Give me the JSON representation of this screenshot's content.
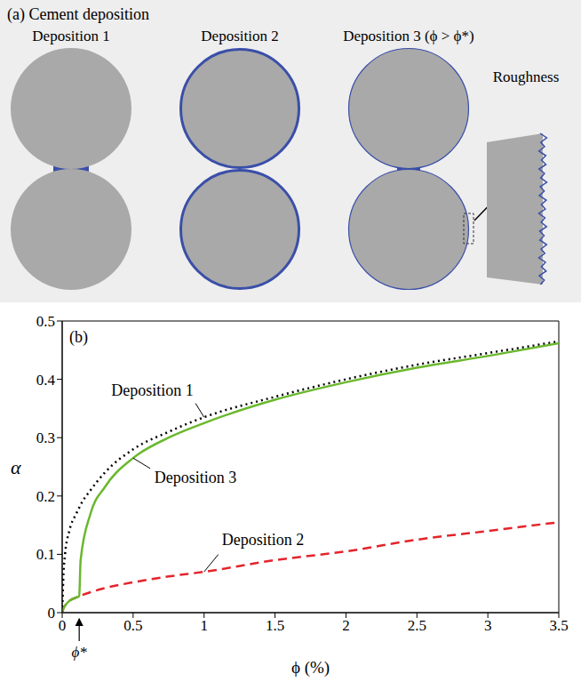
{
  "panel_a": {
    "title": "(a) Cement deposition",
    "labels": [
      "Deposition 1",
      "Deposition 2",
      "Deposition 3 (ϕ > ϕ*)"
    ],
    "inset_label": "Roughness"
  },
  "chart_data": {
    "type": "line",
    "panel_label": "(b)",
    "x_label": "ϕ (%)",
    "y_label": "α",
    "x": [
      0,
      0.01,
      0.02,
      0.05,
      0.1,
      0.12,
      0.13,
      0.2,
      0.3,
      0.5,
      0.75,
      1,
      1.5,
      2,
      2.5,
      3,
      3.5
    ],
    "series": [
      {
        "name": "Deposition 1",
        "color": "#000000",
        "line_style": "dotted",
        "values": [
          0,
          0.07,
          0.1,
          0.14,
          0.17,
          0.18,
          0.185,
          0.21,
          0.24,
          0.28,
          0.31,
          0.335,
          0.37,
          0.4,
          0.425,
          0.445,
          0.465
        ]
      },
      {
        "name": "Deposition 2",
        "color": "#e3242b",
        "line_style": "dashed",
        "values": [
          0,
          0.008,
          0.012,
          0.02,
          0.026,
          0.028,
          0.029,
          0.035,
          0.042,
          0.052,
          0.062,
          0.07,
          0.09,
          0.105,
          0.125,
          0.14,
          0.155
        ]
      },
      {
        "name": "Deposition 3",
        "color": "#6ab82e",
        "line_style": "solid",
        "values": [
          0,
          0.008,
          0.012,
          0.02,
          0.026,
          0.028,
          0.09,
          0.17,
          0.215,
          0.265,
          0.3,
          0.325,
          0.365,
          0.395,
          0.42,
          0.44,
          0.462
        ]
      }
    ],
    "annotations": [
      {
        "text": "ϕ*",
        "x": 0.12
      }
    ],
    "xlim": [
      0,
      3.5
    ],
    "xticks": [
      0,
      0.5,
      1,
      1.5,
      2,
      2.5,
      3,
      3.5
    ],
    "ylim": [
      0,
      0.5
    ],
    "yticks": [
      0,
      0.1,
      0.2,
      0.3,
      0.4,
      0.5
    ]
  }
}
